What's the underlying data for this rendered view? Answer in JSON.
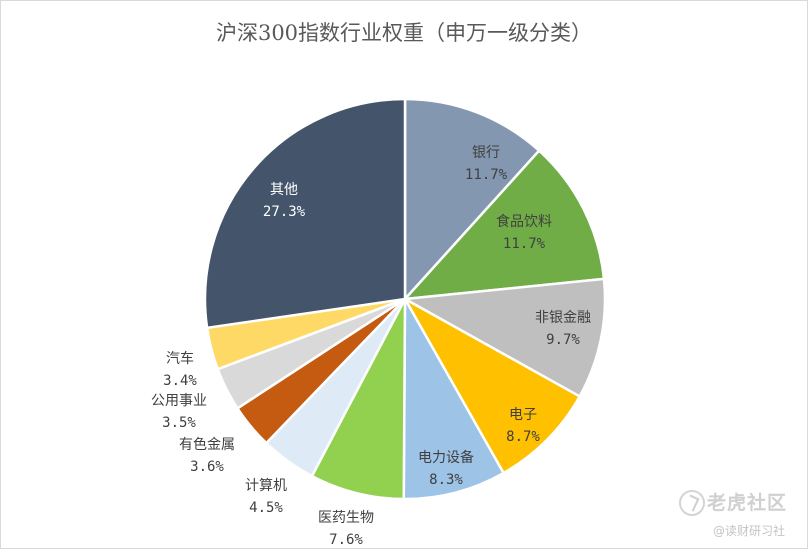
{
  "chart_data": {
    "type": "pie",
    "title": "沪深300指数行业权重（申万一级分类）",
    "unit": "%",
    "start": "12 o'clock, clockwise",
    "slices": [
      {
        "name": "银行",
        "value": 11.7,
        "label": "11.7%",
        "color": "#8497B0"
      },
      {
        "name": "食品饮料",
        "value": 11.7,
        "label": "11.7%",
        "color": "#70AD47"
      },
      {
        "name": "非银金融",
        "value": 9.7,
        "label": "9.7%",
        "color": "#BFBFBF"
      },
      {
        "name": "电子",
        "value": 8.7,
        "label": "8.7%",
        "color": "#FFC000"
      },
      {
        "name": "电力设备",
        "value": 8.3,
        "label": "8.3%",
        "color": "#9DC3E6"
      },
      {
        "name": "医药生物",
        "value": 7.6,
        "label": "7.6%",
        "color": "#92D050"
      },
      {
        "name": "计算机",
        "value": 4.5,
        "label": "4.5%",
        "color": "#DEEBF7"
      },
      {
        "name": "有色金属",
        "value": 3.6,
        "label": "3.6%",
        "color": "#C55A11"
      },
      {
        "name": "公用事业",
        "value": 3.5,
        "label": "3.5%",
        "color": "#D9D9D9"
      },
      {
        "name": "汽车",
        "value": 3.4,
        "label": "3.4%",
        "color": "#FFD966"
      },
      {
        "name": "其他",
        "value": 27.3,
        "label": "27.3%",
        "color": "#44546A"
      }
    ]
  },
  "watermark": {
    "brand": "老虎社区",
    "sub": "@读财研习社"
  }
}
